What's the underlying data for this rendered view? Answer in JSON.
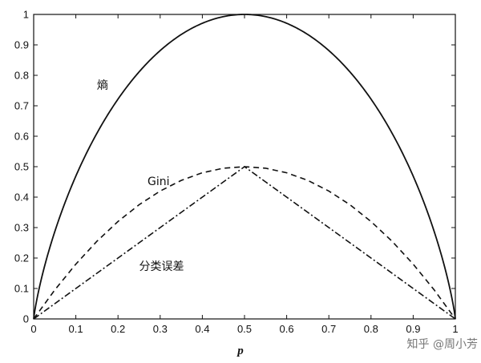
{
  "chart_data": {
    "type": "line",
    "xlabel": "p",
    "ylabel": "",
    "xlim": [
      0,
      1
    ],
    "ylim": [
      0,
      1
    ],
    "x_ticks": [
      "0",
      "0.1",
      "0.2",
      "0.3",
      "0.4",
      "0.5",
      "0.6",
      "0.7",
      "0.8",
      "0.9",
      "1"
    ],
    "y_ticks": [
      "0",
      "0.1",
      "0.2",
      "0.3",
      "0.4",
      "0.5",
      "0.6",
      "0.7",
      "0.8",
      "0.9",
      "1"
    ],
    "grid": false,
    "x": [
      0,
      0.05,
      0.1,
      0.15,
      0.2,
      0.25,
      0.3,
      0.35,
      0.4,
      0.45,
      0.5,
      0.55,
      0.6,
      0.65,
      0.7,
      0.75,
      0.8,
      0.85,
      0.9,
      0.95,
      1
    ],
    "series": [
      {
        "label": "熵",
        "style": "solid",
        "values": [
          0,
          0.286,
          0.469,
          0.61,
          0.722,
          0.811,
          0.881,
          0.934,
          0.971,
          0.993,
          1.0,
          0.993,
          0.971,
          0.934,
          0.881,
          0.811,
          0.722,
          0.61,
          0.469,
          0.286,
          0
        ]
      },
      {
        "label": "Gini",
        "style": "dashed",
        "values": [
          0,
          0.095,
          0.18,
          0.255,
          0.32,
          0.375,
          0.42,
          0.455,
          0.48,
          0.495,
          0.5,
          0.495,
          0.48,
          0.455,
          0.42,
          0.375,
          0.32,
          0.255,
          0.18,
          0.095,
          0
        ]
      },
      {
        "label": "分类误差",
        "style": "dashdot",
        "values": [
          0,
          0.05,
          0.1,
          0.15,
          0.2,
          0.25,
          0.3,
          0.35,
          0.4,
          0.45,
          0.5,
          0.45,
          0.4,
          0.35,
          0.3,
          0.25,
          0.2,
          0.15,
          0.1,
          0.05,
          0
        ]
      }
    ],
    "annotations": [
      {
        "text": "熵",
        "x": 0.15,
        "y": 0.755
      },
      {
        "text": "Gini",
        "x": 0.27,
        "y": 0.44
      },
      {
        "text": "分类误差",
        "x": 0.25,
        "y": 0.16
      }
    ]
  },
  "watermark": "知乎 @周小芳"
}
